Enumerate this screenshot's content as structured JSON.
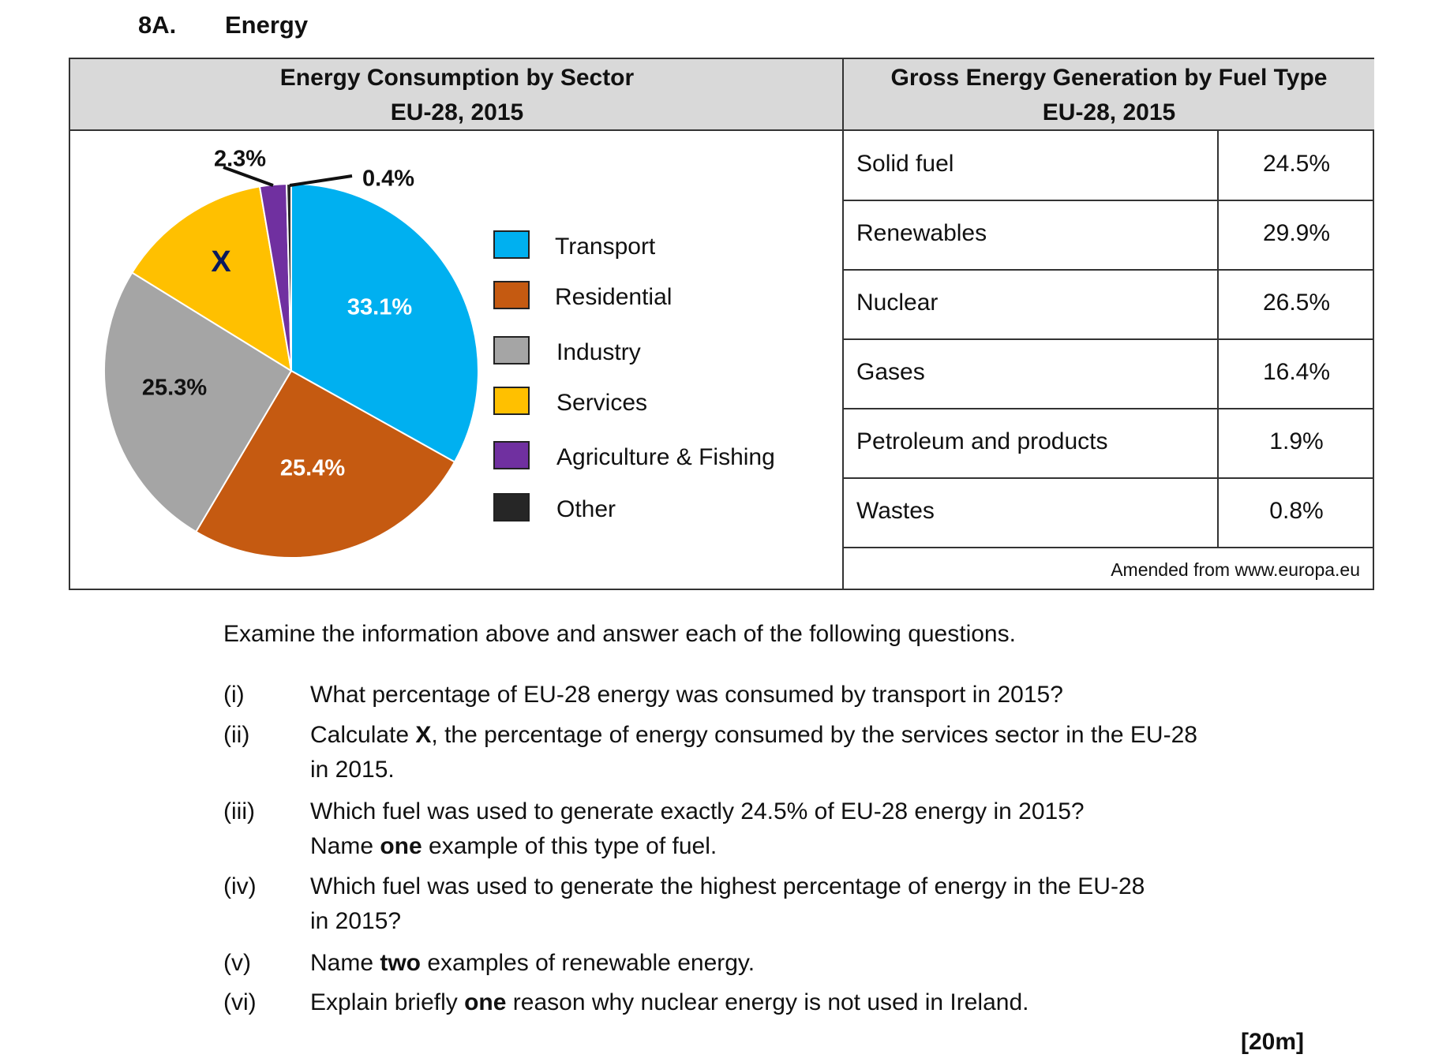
{
  "heading": {
    "number": "8A.",
    "title": "Energy"
  },
  "left_panel": {
    "title_line1": "Energy Consumption by Sector",
    "title_line2": "EU-28, 2015"
  },
  "right_panel": {
    "title_line1": "Gross Energy Generation by Fuel Type",
    "title_line2": "EU-28, 2015",
    "rows": [
      {
        "fuel": "Solid fuel",
        "value": "24.5%"
      },
      {
        "fuel": "Renewables",
        "value": "29.9%"
      },
      {
        "fuel": "Nuclear",
        "value": "26.5%"
      },
      {
        "fuel": "Gases",
        "value": "16.4%"
      },
      {
        "fuel": "Petroleum and products",
        "value": "1.9%"
      },
      {
        "fuel": "Wastes",
        "value": "0.8%"
      }
    ],
    "source": "Amended from www.europa.eu"
  },
  "chart_data": {
    "type": "pie",
    "title": "Energy Consumption by Sector EU-28, 2015",
    "categories": [
      "Transport",
      "Residential",
      "Industry",
      "Services",
      "Agriculture & Fishing",
      "Other"
    ],
    "values": [
      33.1,
      25.4,
      25.3,
      13.5,
      2.3,
      0.4
    ],
    "labels": [
      "33.1%",
      "25.4%",
      "25.3%",
      "X",
      "2.3%",
      "0.4%"
    ],
    "colors": [
      "#00b0f0",
      "#c55a11",
      "#a5a5a5",
      "#ffc000",
      "#7030a0",
      "#262626"
    ],
    "legend": "right"
  },
  "questions": {
    "intro": "Examine the information above and answer each of the following questions.",
    "items": [
      {
        "num": "(i)",
        "lines": [
          "What percentage of EU-28 energy was consumed by transport in 2015?"
        ]
      },
      {
        "num": "(ii)",
        "pre": "Calculate ",
        "bold": "X",
        "post": ", the percentage of energy consumed by the services sector in the EU-28",
        "line2": "in 2015."
      },
      {
        "num": "(iii)",
        "line1": "Which fuel was used to generate exactly 24.5% of EU-28 energy in 2015?",
        "pre": "Name ",
        "bold": "one",
        "post": " example of this type of fuel."
      },
      {
        "num": "(iv)",
        "lines": [
          "Which fuel was used to generate the highest percentage of energy in the EU-28",
          "in 2015?"
        ]
      },
      {
        "num": "(v)",
        "pre": "Name ",
        "bold": "two",
        "post": " examples of renewable energy."
      },
      {
        "num": "(vi)",
        "pre": "Explain briefly ",
        "bold": "one",
        "post": " reason why nuclear energy is not used in Ireland."
      }
    ],
    "marks": "[20m]"
  }
}
